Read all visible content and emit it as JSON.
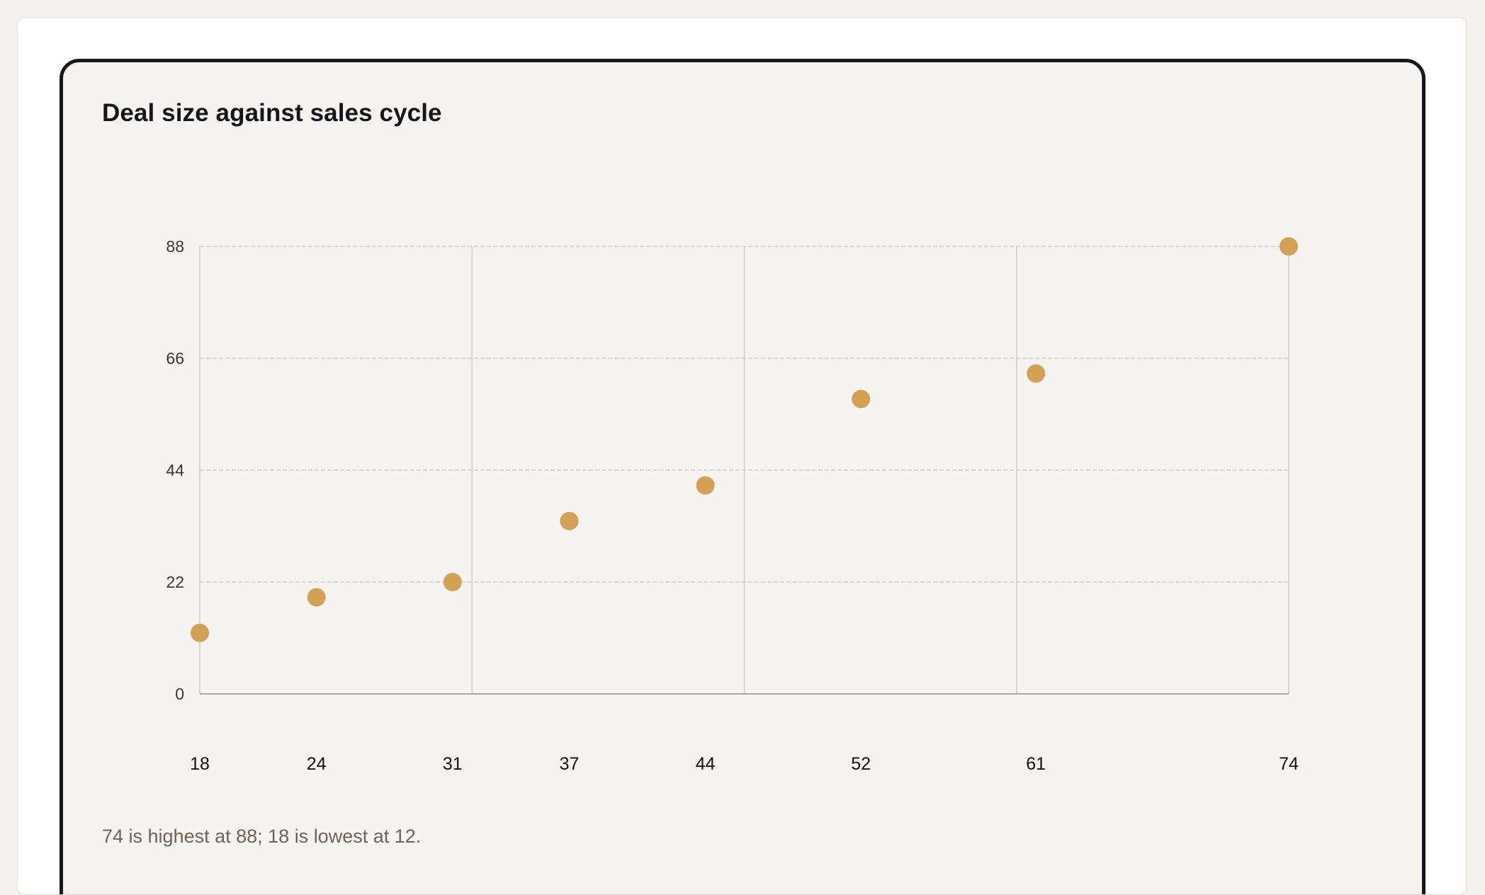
{
  "chart_title": "Deal size against sales cycle",
  "caption": "74 is highest at 88; 18 is lowest at 12.",
  "colors": {
    "point": "#d4a054",
    "grid": "#cfcfcf",
    "axis": "#a8a8a8"
  },
  "chart_data": {
    "type": "scatter",
    "title": "Deal size against sales cycle",
    "xlabel": "",
    "ylabel": "",
    "x": [
      18,
      24,
      31,
      37,
      44,
      52,
      61,
      74
    ],
    "y": [
      12,
      19,
      22,
      34,
      41,
      58,
      63,
      88
    ],
    "x_ticks": [
      18,
      24,
      31,
      37,
      44,
      52,
      61,
      74
    ],
    "y_ticks": [
      0,
      22,
      44,
      66,
      88
    ],
    "xlim": [
      18,
      74
    ],
    "ylim": [
      0,
      88
    ],
    "grid": true,
    "legend": "none"
  }
}
